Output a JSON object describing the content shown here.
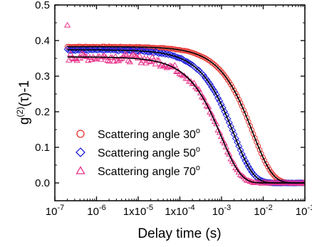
{
  "chart_data": {
    "type": "scatter",
    "x_scale": "log",
    "xlim": [
      1e-07,
      0.1
    ],
    "ylim": [
      -0.05,
      0.5
    ],
    "grid": false,
    "legend_position": "bottom-left",
    "xlabel": "Delay time (s)",
    "ylabel": {
      "main": "g",
      "sup": "(2)",
      "rest": "(τ)-1"
    },
    "x_ticks": [
      {
        "value": 1e-07,
        "base": "10",
        "exp": "-7"
      },
      {
        "value": 1e-06,
        "base": "10",
        "exp": "-6"
      },
      {
        "value": 1e-05,
        "base": "1x10",
        "exp": "-5"
      },
      {
        "value": 0.0001,
        "base": "1x10",
        "exp": "-4"
      },
      {
        "value": 0.001,
        "base": "10",
        "exp": "-3"
      },
      {
        "value": 0.01,
        "base": "10",
        "exp": "-2"
      },
      {
        "value": 0.1,
        "base": "10",
        "exp": "-1"
      }
    ],
    "y_ticks": [
      {
        "value": 0.0,
        "label": "0.0"
      },
      {
        "value": 0.1,
        "label": "0.1"
      },
      {
        "value": 0.2,
        "label": "0.2"
      },
      {
        "value": 0.3,
        "label": "0.3"
      },
      {
        "value": 0.4,
        "label": "0.4"
      },
      {
        "value": 0.5,
        "label": "0.5"
      }
    ],
    "series": [
      {
        "name": "Scattering angle 30",
        "name_sup": "o",
        "marker": "circle",
        "color": "#e8312f",
        "fit": {
          "amplitude": 0.383,
          "tau": 0.012,
          "beta": 0.92,
          "from": 2e-07
        }
      },
      {
        "name": "Scattering angle 50",
        "name_sup": "o",
        "marker": "diamond",
        "color": "#2222dd",
        "fit": {
          "amplitude": 0.374,
          "tau": 0.0042,
          "beta": 0.92,
          "from": 2e-07
        }
      },
      {
        "name": "Scattering angle 70",
        "name_sup": "o",
        "marker": "triangle",
        "color": "#e8338a",
        "fit": {
          "amplitude": 0.354,
          "tau": 0.0021,
          "beta": 0.92,
          "from": 2e-07
        },
        "first_point": {
          "x": 2e-07,
          "y": 0.443
        }
      }
    ],
    "fit_line_color": "#000000"
  }
}
